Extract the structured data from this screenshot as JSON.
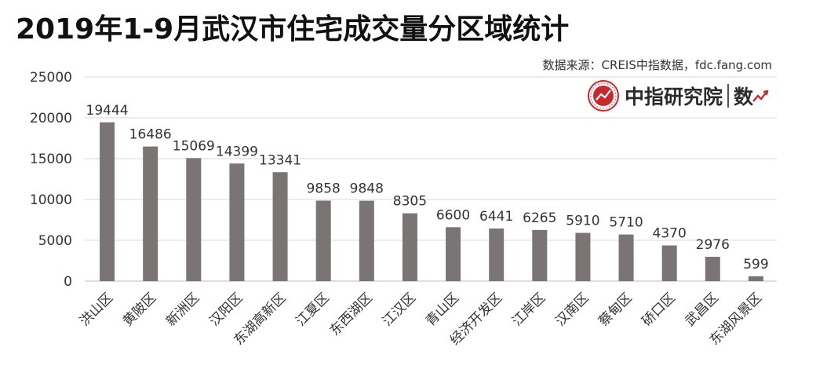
{
  "header": {
    "title": "2019年1-9月武汉市住宅成交量分区域统计",
    "source": "数据来源：CREIS中指数据，fdc.fang.com"
  },
  "logo": {
    "name": "中指研究院",
    "suffix": "数",
    "seal_icon": "china-index-academy-seal-icon",
    "trend_icon": "trend-arrow-icon",
    "color": "#c8282d"
  },
  "chart_data": {
    "type": "bar",
    "title": "2019年1-9月武汉市住宅成交量分区域统计",
    "categories": [
      "洪山区",
      "黄陂区",
      "新洲区",
      "汉阳区",
      "东湖高新区",
      "江夏区",
      "东西湖区",
      "江汉区",
      "青山区",
      "经济开发区",
      "江岸区",
      "汉南区",
      "蔡甸区",
      "硚口区",
      "武昌区",
      "东湖风景区"
    ],
    "values": [
      19444,
      16486,
      15069,
      14399,
      13341,
      9858,
      9848,
      8305,
      6600,
      6441,
      6265,
      5910,
      5710,
      4370,
      2976,
      599
    ],
    "ylim": [
      0,
      25000
    ],
    "yticks": [
      0,
      5000,
      10000,
      15000,
      20000,
      25000
    ],
    "grid": true,
    "legend": "none",
    "bar_color": "#7a7474",
    "data_labels": true
  }
}
